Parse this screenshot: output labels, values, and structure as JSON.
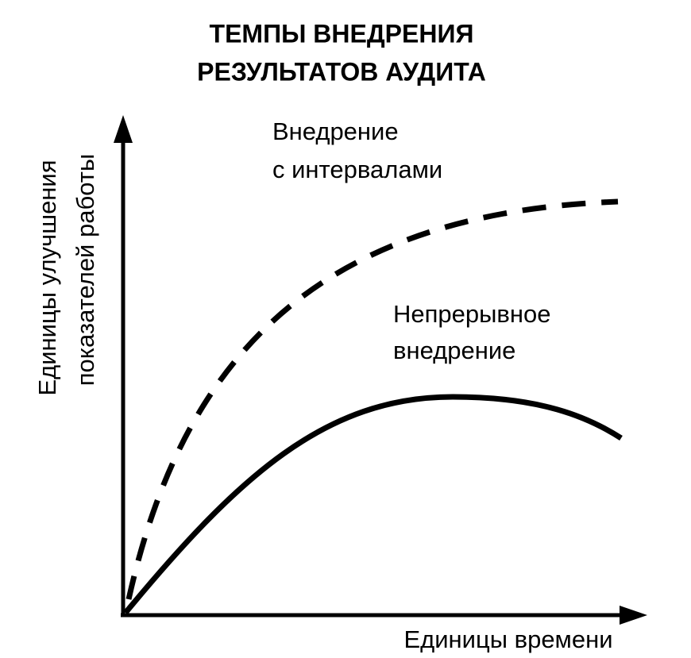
{
  "title": [
    "ТЕМПЫ ВНЕДРЕНИЯ",
    "РЕЗУЛЬТАТОВ АУДИТА"
  ],
  "y_axis_label": [
    "Единицы улучшения",
    "показателей работы"
  ],
  "x_axis_label": "Единицы времени",
  "curves": [
    {
      "label": [
        "Внедрение",
        "с интервалами"
      ]
    },
    {
      "label": [
        "Непрерывное",
        "внедрение"
      ]
    }
  ]
}
